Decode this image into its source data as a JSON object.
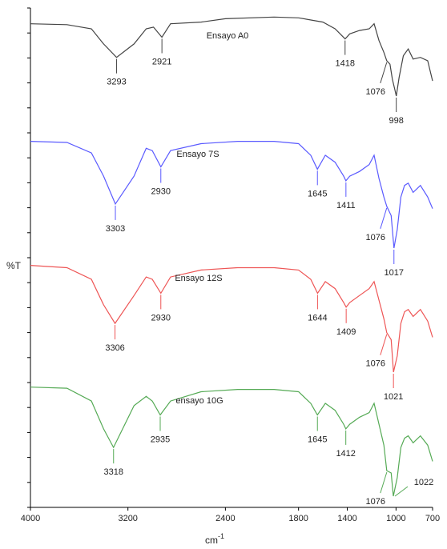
{
  "chart_data": {
    "type": "line",
    "ylabel": "%T",
    "xlabel": "cm",
    "xlabel_sup": "-1",
    "xlim": [
      4000,
      700
    ],
    "x_reversed": true,
    "xticks": [
      "4000",
      "3200",
      "2400",
      "1800",
      "1400",
      "1000",
      "700"
    ],
    "xtick_values": [
      4000,
      3200,
      2400,
      1800,
      1400,
      1000,
      700
    ],
    "series": [
      {
        "name": "Ensayo A0",
        "color": "#444444",
        "points": [
          [
            4000,
            86
          ],
          [
            3700,
            85
          ],
          [
            3500,
            80
          ],
          [
            3400,
            62
          ],
          [
            3293,
            46
          ],
          [
            3150,
            62
          ],
          [
            3050,
            80
          ],
          [
            2990,
            82
          ],
          [
            2921,
            70
          ],
          [
            2850,
            86
          ],
          [
            2600,
            88
          ],
          [
            2400,
            92
          ],
          [
            2000,
            94
          ],
          [
            1800,
            93
          ],
          [
            1600,
            88
          ],
          [
            1500,
            80
          ],
          [
            1418,
            68
          ],
          [
            1380,
            74
          ],
          [
            1300,
            78
          ],
          [
            1220,
            80
          ],
          [
            1180,
            86
          ],
          [
            1140,
            66
          ],
          [
            1100,
            52
          ],
          [
            1076,
            42
          ],
          [
            1050,
            38
          ],
          [
            1030,
            20
          ],
          [
            1010,
            8
          ],
          [
            998,
            0
          ],
          [
            975,
            22
          ],
          [
            940,
            48
          ],
          [
            900,
            56
          ],
          [
            860,
            44
          ],
          [
            800,
            46
          ],
          [
            740,
            42
          ],
          [
            700,
            18
          ]
        ],
        "peaks": [
          {
            "x": 3293,
            "label": "3293"
          },
          {
            "x": 2921,
            "label": "2921"
          },
          {
            "x": 1418,
            "label": "1418"
          },
          {
            "x": 1076,
            "label": "1076"
          },
          {
            "x": 998,
            "label": "998"
          }
        ]
      },
      {
        "name": "Ensayo 7S",
        "color": "#5a5aff",
        "points": [
          [
            4000,
            92
          ],
          [
            3700,
            91
          ],
          [
            3500,
            82
          ],
          [
            3400,
            62
          ],
          [
            3303,
            38
          ],
          [
            3150,
            62
          ],
          [
            3050,
            86
          ],
          [
            3000,
            84
          ],
          [
            2930,
            70
          ],
          [
            2850,
            84
          ],
          [
            2600,
            90
          ],
          [
            2300,
            92
          ],
          [
            2000,
            92
          ],
          [
            1800,
            90
          ],
          [
            1700,
            80
          ],
          [
            1645,
            68
          ],
          [
            1580,
            80
          ],
          [
            1500,
            74
          ],
          [
            1430,
            62
          ],
          [
            1411,
            58
          ],
          [
            1380,
            62
          ],
          [
            1300,
            66
          ],
          [
            1220,
            72
          ],
          [
            1180,
            80
          ],
          [
            1140,
            60
          ],
          [
            1100,
            44
          ],
          [
            1076,
            36
          ],
          [
            1040,
            28
          ],
          [
            1017,
            0
          ],
          [
            990,
            16
          ],
          [
            960,
            44
          ],
          [
            930,
            54
          ],
          [
            900,
            56
          ],
          [
            860,
            48
          ],
          [
            800,
            54
          ],
          [
            740,
            44
          ],
          [
            700,
            34
          ]
        ],
        "peaks": [
          {
            "x": 3303,
            "label": "3303"
          },
          {
            "x": 2930,
            "label": "2930"
          },
          {
            "x": 1645,
            "label": "1645"
          },
          {
            "x": 1411,
            "label": "1411"
          },
          {
            "x": 1076,
            "label": "1076"
          },
          {
            "x": 1017,
            "label": "1017"
          }
        ]
      },
      {
        "name": "Ensayo 12S",
        "color": "#ee5555",
        "points": [
          [
            4000,
            92
          ],
          [
            3700,
            90
          ],
          [
            3500,
            80
          ],
          [
            3400,
            58
          ],
          [
            3306,
            42
          ],
          [
            3150,
            66
          ],
          [
            3050,
            82
          ],
          [
            3000,
            80
          ],
          [
            2930,
            68
          ],
          [
            2850,
            82
          ],
          [
            2600,
            88
          ],
          [
            2300,
            90
          ],
          [
            2000,
            90
          ],
          [
            1800,
            88
          ],
          [
            1700,
            80
          ],
          [
            1644,
            68
          ],
          [
            1580,
            78
          ],
          [
            1500,
            72
          ],
          [
            1430,
            60
          ],
          [
            1409,
            56
          ],
          [
            1380,
            60
          ],
          [
            1300,
            66
          ],
          [
            1220,
            72
          ],
          [
            1180,
            78
          ],
          [
            1140,
            62
          ],
          [
            1100,
            46
          ],
          [
            1076,
            34
          ],
          [
            1040,
            28
          ],
          [
            1021,
            0
          ],
          [
            990,
            14
          ],
          [
            960,
            42
          ],
          [
            930,
            52
          ],
          [
            900,
            54
          ],
          [
            860,
            48
          ],
          [
            800,
            54
          ],
          [
            740,
            44
          ],
          [
            700,
            30
          ]
        ],
        "peaks": [
          {
            "x": 3306,
            "label": "3306"
          },
          {
            "x": 2930,
            "label": "2930"
          },
          {
            "x": 1644,
            "label": "1644"
          },
          {
            "x": 1409,
            "label": "1409"
          },
          {
            "x": 1076,
            "label": "1076"
          },
          {
            "x": 1021,
            "label": "1021"
          }
        ]
      },
      {
        "name": "ensayo 10G",
        "color": "#55aa55",
        "points": [
          [
            4000,
            94
          ],
          [
            3700,
            93
          ],
          [
            3500,
            82
          ],
          [
            3400,
            58
          ],
          [
            3318,
            42
          ],
          [
            3150,
            78
          ],
          [
            3050,
            86
          ],
          [
            3000,
            82
          ],
          [
            2935,
            70
          ],
          [
            2850,
            82
          ],
          [
            2600,
            90
          ],
          [
            2300,
            92
          ],
          [
            2000,
            92
          ],
          [
            1800,
            90
          ],
          [
            1700,
            80
          ],
          [
            1645,
            70
          ],
          [
            1580,
            80
          ],
          [
            1500,
            74
          ],
          [
            1430,
            62
          ],
          [
            1412,
            58
          ],
          [
            1380,
            62
          ],
          [
            1300,
            68
          ],
          [
            1220,
            72
          ],
          [
            1180,
            80
          ],
          [
            1140,
            62
          ],
          [
            1100,
            44
          ],
          [
            1076,
            22
          ],
          [
            1040,
            20
          ],
          [
            1022,
            0
          ],
          [
            990,
            16
          ],
          [
            960,
            42
          ],
          [
            930,
            50
          ],
          [
            900,
            52
          ],
          [
            860,
            46
          ],
          [
            800,
            52
          ],
          [
            740,
            44
          ],
          [
            700,
            30
          ]
        ],
        "peaks": [
          {
            "x": 3318,
            "label": "3318"
          },
          {
            "x": 2935,
            "label": "2935"
          },
          {
            "x": 1645,
            "label": "1645"
          },
          {
            "x": 1412,
            "label": "1412"
          },
          {
            "x": 1076,
            "label": "1076"
          },
          {
            "x": 1022,
            "label": "1022"
          }
        ]
      }
    ]
  }
}
